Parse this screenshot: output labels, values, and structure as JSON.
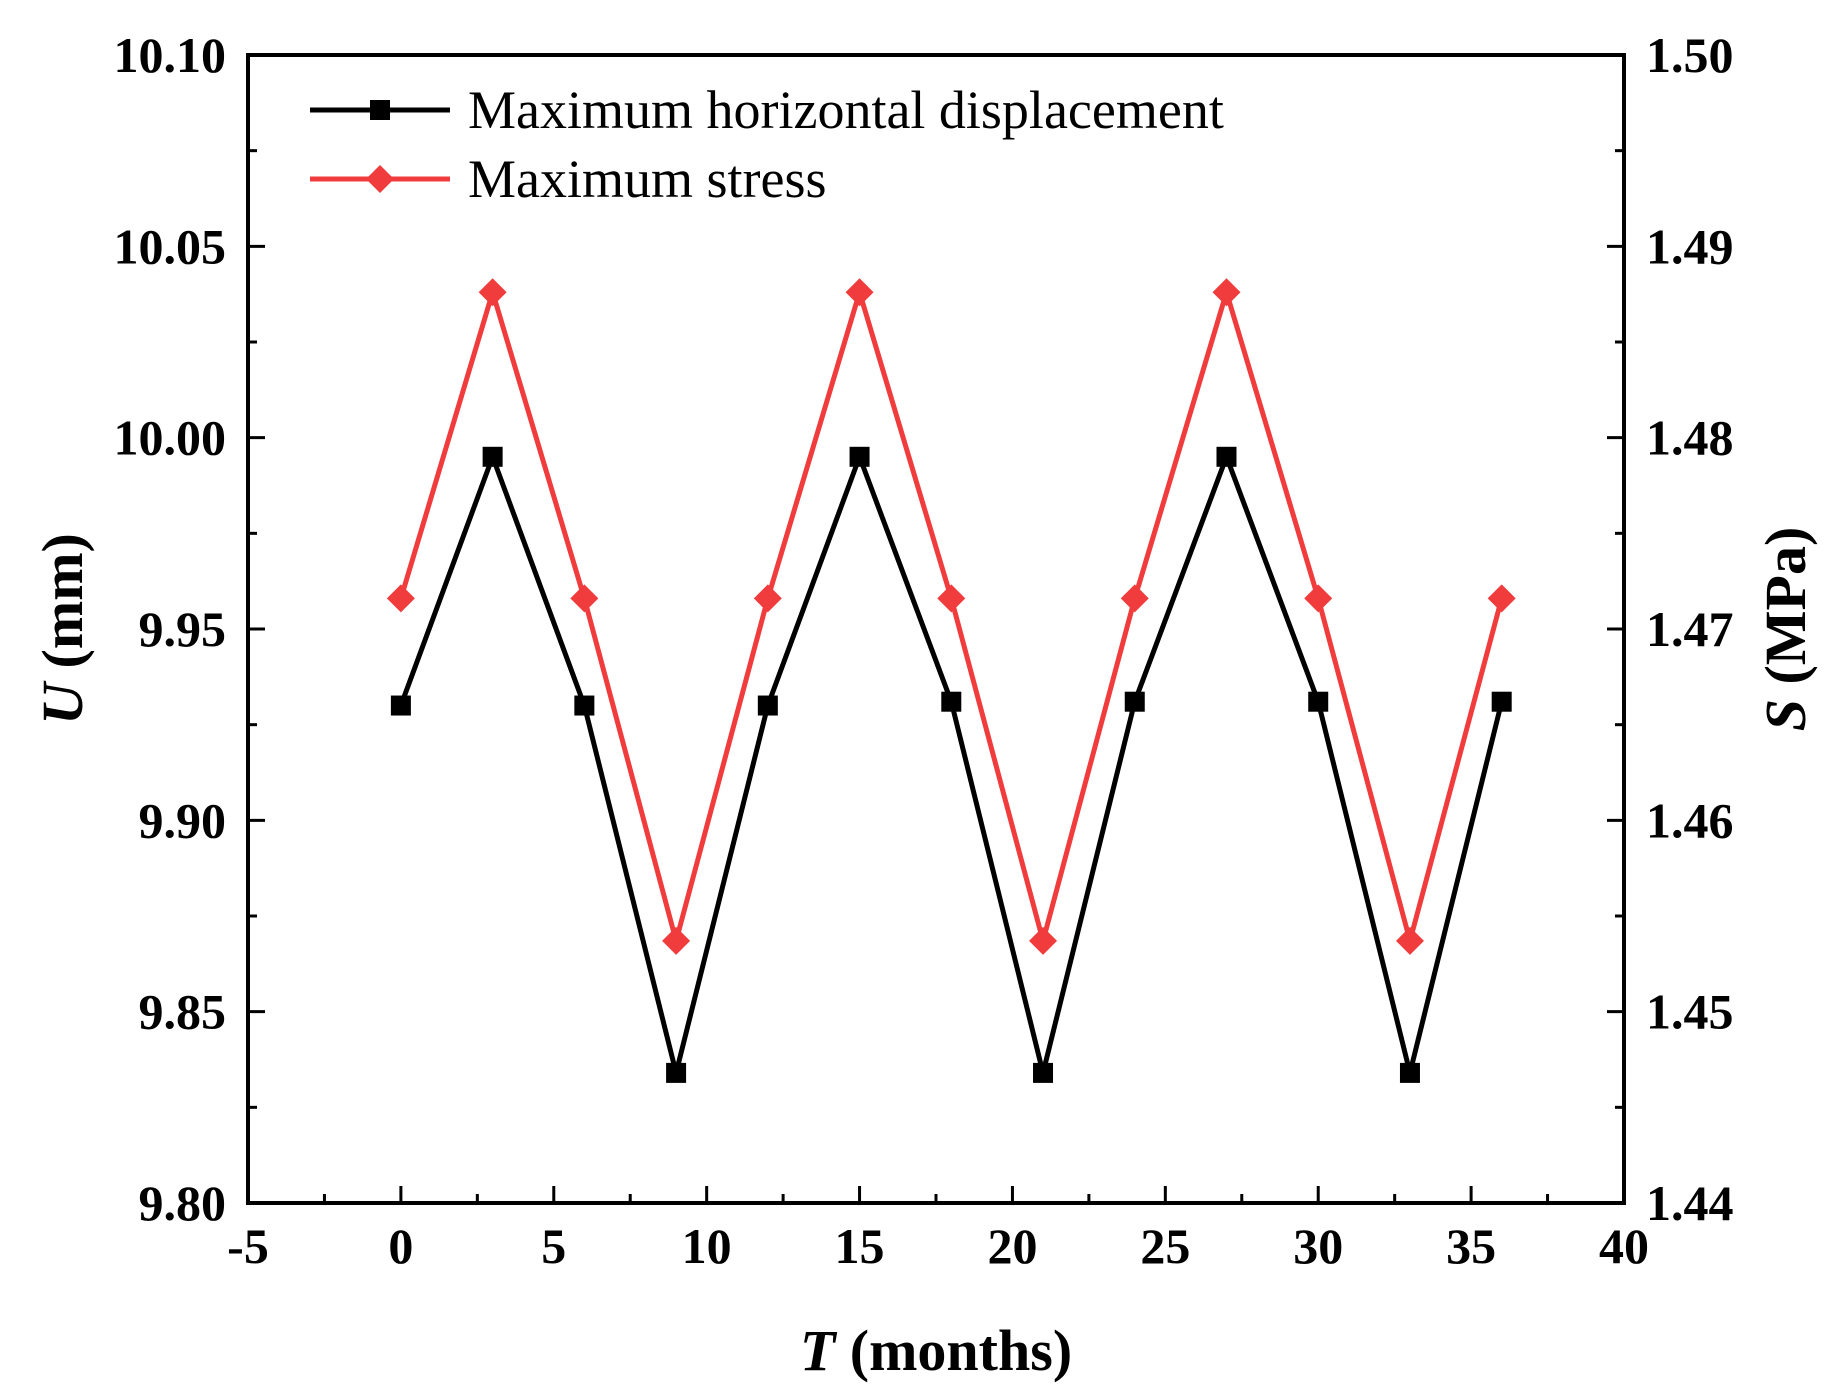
{
  "chart_data": {
    "type": "line",
    "x": [
      0,
      3,
      6,
      9,
      12,
      15,
      18,
      21,
      24,
      27,
      30,
      33,
      36
    ],
    "xlim": [
      -5,
      40
    ],
    "xticks": [
      -5,
      0,
      5,
      10,
      15,
      20,
      25,
      30,
      35,
      40
    ],
    "xtick_labels": [
      "-5",
      "0",
      "5",
      "10",
      "15",
      "20",
      "25",
      "30",
      "35",
      "40"
    ],
    "xlabel": {
      "symbol": "T",
      "unit": " (months)"
    },
    "ylabel_left": {
      "symbol": "U",
      "unit": " (mm)"
    },
    "ylabel_right": {
      "symbol": "S",
      "unit": " (MPa)"
    },
    "ylim_left": [
      9.8,
      10.1
    ],
    "yticks_left": [
      9.8,
      9.85,
      9.9,
      9.95,
      10.0,
      10.05,
      10.1
    ],
    "ytick_labels_left": [
      "9.80",
      "9.85",
      "9.90",
      "9.95",
      "10.00",
      "10.05",
      "10.10"
    ],
    "ylim_right": [
      1.44,
      1.5
    ],
    "yticks_right": [
      1.44,
      1.45,
      1.46,
      1.47,
      1.48,
      1.49,
      1.5
    ],
    "ytick_labels_right": [
      "1.44",
      "1.45",
      "1.46",
      "1.47",
      "1.48",
      "1.49",
      "1.50"
    ],
    "legend_position": "top-left",
    "series": [
      {
        "name": "Maximum horizontal displacement",
        "axis": "left",
        "color": "#000000",
        "marker": "square",
        "values": [
          9.93,
          9.995,
          9.93,
          9.834,
          9.93,
          9.995,
          9.931,
          9.834,
          9.931,
          9.995,
          9.931,
          9.834,
          9.931
        ]
      },
      {
        "name": "Maximum stress",
        "axis": "right",
        "color": "#f03c3c",
        "marker": "diamond",
        "values": [
          1.4716,
          1.4876,
          1.4716,
          1.4537,
          1.4716,
          1.4876,
          1.4716,
          1.4537,
          1.4716,
          1.4876,
          1.4716,
          1.4537,
          1.4716
        ]
      }
    ]
  }
}
